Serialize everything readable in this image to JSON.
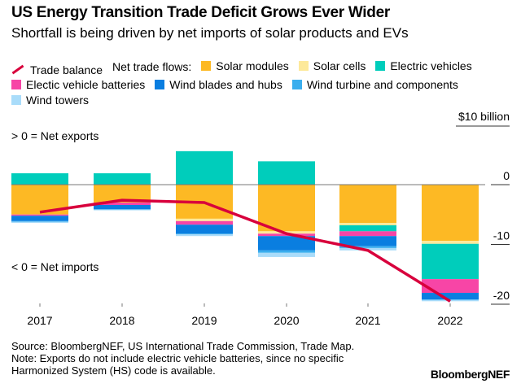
{
  "chart_data": {
    "type": "bar",
    "stacked": true,
    "title": "US Energy Transition Trade Deficit Grows Ever Wider",
    "subtitle": "Shortfall is being driven by net imports of solar products and EVs",
    "legend_prefix": "Net trade flows:",
    "y_unit_label": "$10 billion",
    "annotations": [
      "> 0 = Net exports",
      "< 0 = Net imports"
    ],
    "categories": [
      "2017",
      "2018",
      "2019",
      "2020",
      "2021",
      "2022"
    ],
    "ylim": [
      -21,
      10
    ],
    "yticks": [
      0,
      -10,
      -20
    ],
    "ytick_labels": [
      "0",
      "-10",
      "-20"
    ],
    "series": [
      {
        "name": "Solar modules",
        "color": "#fdb924",
        "values": [
          -5.0,
          -3.0,
          -5.7,
          -7.8,
          -6.4,
          -9.4
        ]
      },
      {
        "name": "Solar cells",
        "color": "#fde99a",
        "values": [
          0,
          0,
          -0.4,
          -0.4,
          -0.4,
          -0.5
        ]
      },
      {
        "name": "Electric vehicles",
        "color": "#00cdbb",
        "values": [
          1.9,
          1.9,
          5.6,
          3.9,
          -1.0,
          -5.9
        ]
      },
      {
        "name": "Electic vehicle batteries",
        "color": "#f745a6",
        "values": [
          -0.2,
          -0.4,
          -0.6,
          -0.4,
          -0.8,
          -2.3
        ]
      },
      {
        "name": "Wind blades and hubs",
        "color": "#0a7ee0",
        "values": [
          -0.9,
          -0.7,
          -1.5,
          -2.4,
          -1.7,
          -1.1
        ]
      },
      {
        "name": "Wind turbine and components",
        "color": "#3aaeee",
        "values": [
          -0.1,
          -0.1,
          -0.1,
          -0.4,
          -0.3,
          -0.1
        ]
      },
      {
        "name": "Wind towers",
        "color": "#a9dcfa",
        "values": [
          -0.2,
          -0.1,
          -0.3,
          -0.7,
          -0.4,
          -0.2
        ]
      }
    ],
    "line": {
      "name": "Trade balance",
      "color": "#d8003c",
      "values": [
        -4.6,
        -2.6,
        -3.0,
        -8.2,
        -11.0,
        -19.5
      ]
    }
  },
  "notes": [
    "Source: BloombergNEF, US International Trade Commission, Trade Map.",
    "Note: Exports do not include electric vehicle batteries, since no specific Harmonized System (HS) code is available."
  ],
  "brand": "BloombergNEF"
}
